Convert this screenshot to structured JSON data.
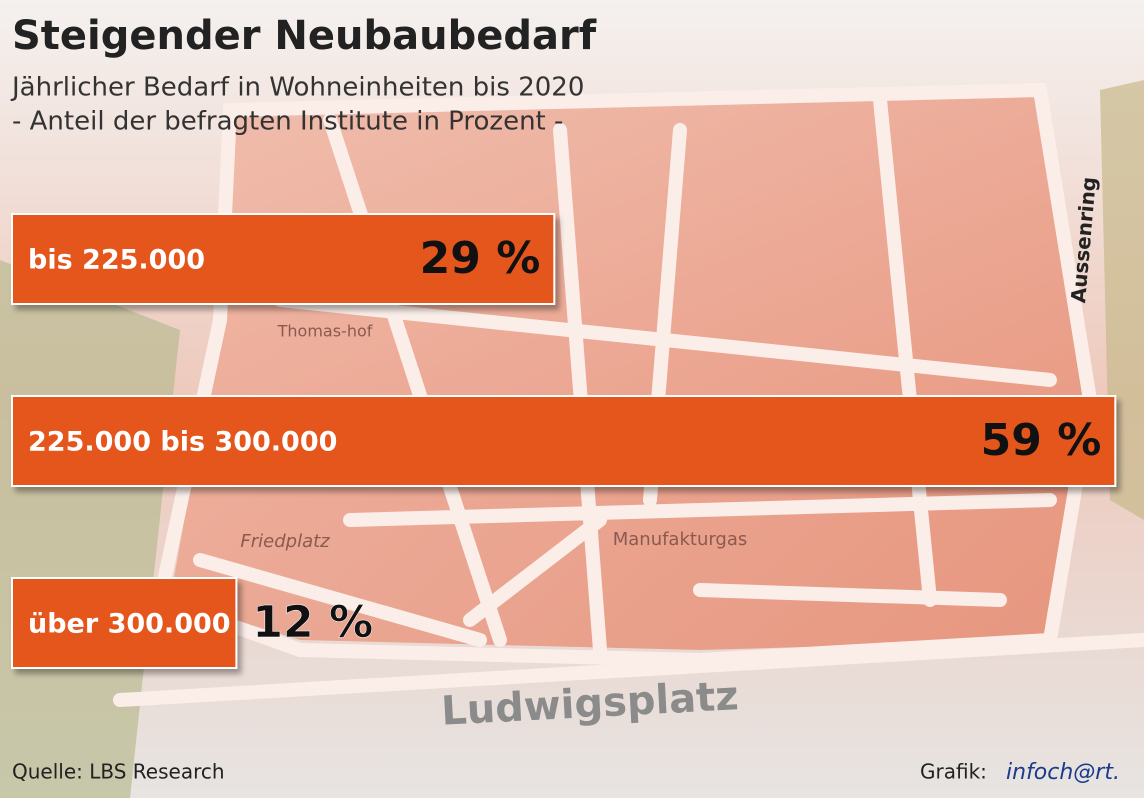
{
  "chart_data": {
    "type": "bar",
    "title": "Steigender Neubaubedarf",
    "subtitle": "Jährlicher Bedarf in Wohneinheiten bis 2020",
    "subtitle_2": "- Anteil der befragten Institute in Prozent -",
    "categories": [
      "bis 225.000",
      "225.000 bis 300.000",
      "über 300.000"
    ],
    "values": [
      29,
      59,
      12
    ],
    "value_labels": [
      "29 %",
      "59 %",
      "12 %"
    ],
    "color": "#e5561b",
    "map_labels": [
      "Ludwigsplatz",
      "Aussenring",
      "Friedplatz",
      "Manufakturgas",
      "Thomas-hof"
    ],
    "source": "Quelle: LBS Research",
    "credit": "Grafik:",
    "credit_logo": "infoch@rt."
  }
}
